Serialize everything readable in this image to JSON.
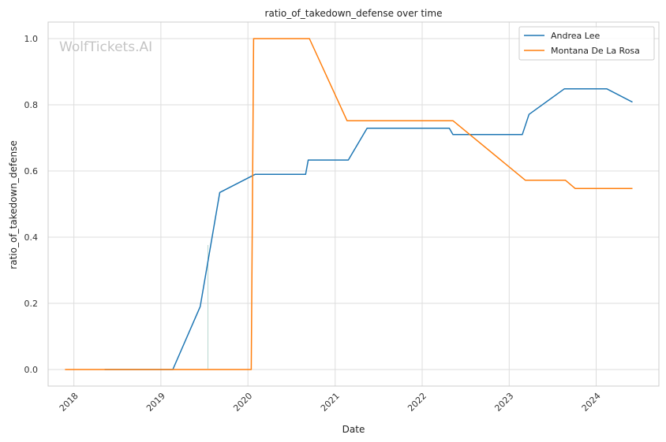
{
  "chart_data": {
    "type": "line",
    "title": "ratio_of_takedown_defense over time",
    "xlabel": "Date",
    "ylabel": "ratio_of_takedown_defense",
    "watermark": "WolfTickets.AI",
    "xlim": [
      "2017-09-15",
      "2024-09-20"
    ],
    "ylim": [
      -0.05,
      1.05
    ],
    "x_ticks": [
      {
        "date": "2018-01-01",
        "label": "2018"
      },
      {
        "date": "2019-01-01",
        "label": "2019"
      },
      {
        "date": "2020-01-01",
        "label": "2020"
      },
      {
        "date": "2021-01-01",
        "label": "2021"
      },
      {
        "date": "2022-01-01",
        "label": "2022"
      },
      {
        "date": "2023-01-01",
        "label": "2023"
      },
      {
        "date": "2024-01-01",
        "label": "2024"
      }
    ],
    "y_ticks": [
      {
        "value": 0.0,
        "label": "0.0"
      },
      {
        "value": 0.2,
        "label": "0.2"
      },
      {
        "value": 0.4,
        "label": "0.4"
      },
      {
        "value": 0.6,
        "label": "0.6"
      },
      {
        "value": 0.8,
        "label": "0.8"
      },
      {
        "value": 1.0,
        "label": "1.0"
      }
    ],
    "grid": true,
    "legend_position": "top-right",
    "series": [
      {
        "name": "Andrea Lee",
        "color": "#1f77b4",
        "points": [
          {
            "x": "2018-05-10",
            "y": 0.0
          },
          {
            "x": "2019-02-20",
            "y": 0.0
          },
          {
            "x": "2019-06-15",
            "y": 0.19
          },
          {
            "x": "2019-09-05",
            "y": 0.535
          },
          {
            "x": "2020-02-01",
            "y": 0.59
          },
          {
            "x": "2020-08-30",
            "y": 0.59
          },
          {
            "x": "2020-09-10",
            "y": 0.633
          },
          {
            "x": "2021-02-25",
            "y": 0.633
          },
          {
            "x": "2021-05-15",
            "y": 0.729
          },
          {
            "x": "2022-04-25",
            "y": 0.729
          },
          {
            "x": "2022-05-10",
            "y": 0.71
          },
          {
            "x": "2023-02-25",
            "y": 0.71
          },
          {
            "x": "2023-03-25",
            "y": 0.771
          },
          {
            "x": "2023-08-20",
            "y": 0.848
          },
          {
            "x": "2024-02-15",
            "y": 0.848
          },
          {
            "x": "2024-06-01",
            "y": 0.808
          }
        ]
      },
      {
        "name": "Montana De La Rosa",
        "color": "#ff7f0e",
        "points": [
          {
            "x": "2017-11-25",
            "y": 0.0
          },
          {
            "x": "2020-01-15",
            "y": 0.0
          },
          {
            "x": "2020-01-25",
            "y": 1.0
          },
          {
            "x": "2020-09-15",
            "y": 1.0
          },
          {
            "x": "2021-02-20",
            "y": 0.752
          },
          {
            "x": "2022-05-10",
            "y": 0.752
          },
          {
            "x": "2023-03-10",
            "y": 0.572
          },
          {
            "x": "2023-08-25",
            "y": 0.572
          },
          {
            "x": "2023-10-05",
            "y": 0.547
          },
          {
            "x": "2024-06-01",
            "y": 0.547
          }
        ]
      }
    ]
  }
}
